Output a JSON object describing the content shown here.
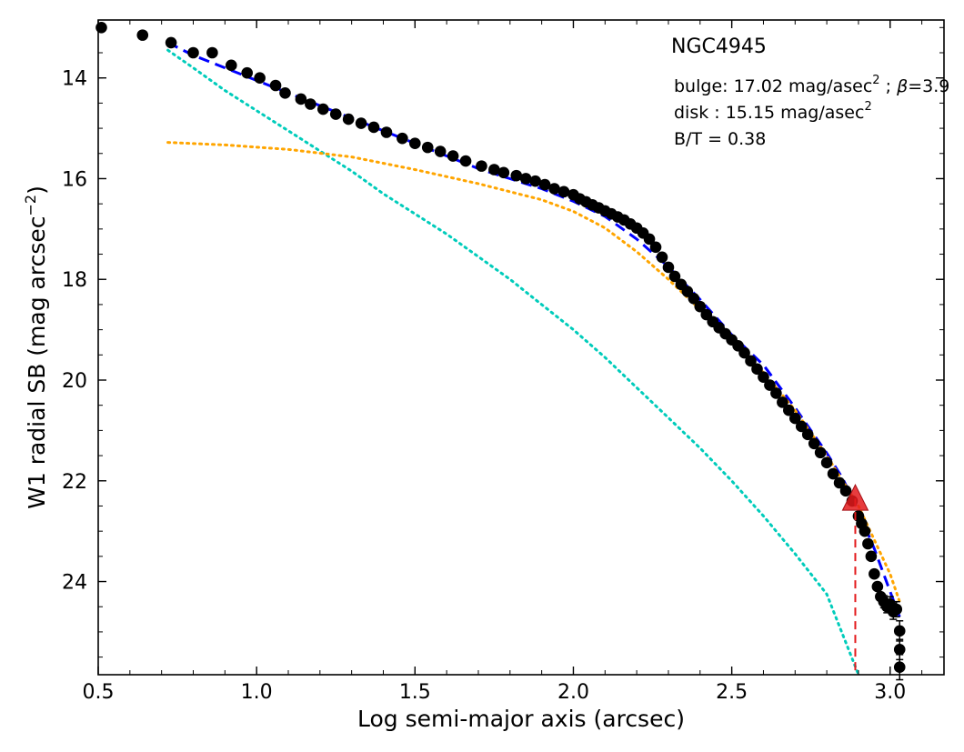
{
  "chart_data": {
    "type": "scatter",
    "title": "NGC4945",
    "xlabel": "Log semi-major axis (arcsec)",
    "ylabel": "W1 radial SB (mag arcsec",
    "ylabel_sup": "−2",
    "ylabel_close": ")",
    "xlim": [
      0.5,
      3.17
    ],
    "ylim": [
      25.85,
      12.85
    ],
    "y_inverted": true,
    "grid": false,
    "xticks": [
      0.5,
      1.0,
      1.5,
      2.0,
      2.5,
      3.0
    ],
    "xtick_labels": [
      "0.5",
      "1.0",
      "1.5",
      "2.0",
      "2.5",
      "3.0"
    ],
    "yticks": [
      14,
      16,
      18,
      20,
      22,
      24
    ],
    "ytick_labels": [
      "14",
      "16",
      "18",
      "20",
      "22",
      "24"
    ],
    "annotations": {
      "bulge_text": "bulge: 17.02 mag/asec",
      "bulge_sup": "2",
      "bulge_rest": " ; ",
      "beta_symbol": "β",
      "beta_value": "=3.9",
      "disk_text": "disk  : 15.15 mag/asec",
      "disk_sup": "2",
      "bt_text": "B/T = 0.38"
    },
    "colors": {
      "data": "#000000",
      "total_fit": "#0000ff",
      "bulge_fit": "#00ccbb",
      "disk_fit": "#ffa500",
      "marker": "#e31a1c",
      "marker_line": "#e31a1c"
    },
    "series": [
      {
        "name": "data",
        "kind": "points",
        "x": [
          0.51,
          0.64,
          0.73,
          0.8,
          0.86,
          0.92,
          0.97,
          1.01,
          1.06,
          1.09,
          1.14,
          1.17,
          1.21,
          1.25,
          1.29,
          1.33,
          1.37,
          1.41,
          1.46,
          1.5,
          1.54,
          1.58,
          1.62,
          1.66,
          1.71,
          1.75,
          1.78,
          1.82,
          1.85,
          1.88,
          1.91,
          1.94,
          1.97,
          2.0,
          2.02,
          2.04,
          2.06,
          2.08,
          2.1,
          2.12,
          2.14,
          2.16,
          2.18,
          2.2,
          2.22,
          2.24,
          2.26,
          2.28,
          2.3,
          2.32,
          2.34,
          2.36,
          2.38,
          2.4,
          2.42,
          2.44,
          2.46,
          2.48,
          2.5,
          2.52,
          2.54,
          2.56,
          2.58,
          2.6,
          2.62,
          2.64,
          2.66,
          2.68,
          2.7,
          2.72,
          2.74,
          2.76,
          2.78,
          2.8,
          2.82,
          2.84,
          2.86,
          2.88,
          2.9,
          2.91,
          2.92,
          2.93,
          2.94,
          2.95,
          2.96,
          2.97,
          2.98,
          2.99,
          3.0,
          3.01,
          3.02,
          3.03,
          3.03,
          3.03
        ],
        "y": [
          13.0,
          13.15,
          13.3,
          13.5,
          13.5,
          13.75,
          13.9,
          14.0,
          14.15,
          14.3,
          14.42,
          14.52,
          14.62,
          14.72,
          14.82,
          14.9,
          14.98,
          15.08,
          15.2,
          15.3,
          15.38,
          15.46,
          15.55,
          15.65,
          15.75,
          15.82,
          15.88,
          15.94,
          16.0,
          16.05,
          16.12,
          16.2,
          16.26,
          16.32,
          16.4,
          16.46,
          16.52,
          16.58,
          16.64,
          16.7,
          16.76,
          16.82,
          16.9,
          16.98,
          17.08,
          17.2,
          17.36,
          17.56,
          17.76,
          17.94,
          18.1,
          18.24,
          18.38,
          18.54,
          18.7,
          18.84,
          18.96,
          19.08,
          19.2,
          19.32,
          19.46,
          19.62,
          19.78,
          19.94,
          20.1,
          20.26,
          20.44,
          20.6,
          20.76,
          20.92,
          21.08,
          21.26,
          21.44,
          21.64,
          21.86,
          22.04,
          22.2,
          22.4,
          22.7,
          22.85,
          23.0,
          23.25,
          23.5,
          23.85,
          24.1,
          24.3,
          24.4,
          24.5,
          24.45,
          24.6,
          24.55,
          24.98,
          25.35,
          25.7
        ],
        "yerr": [
          0,
          0,
          0,
          0,
          0,
          0,
          0,
          0,
          0,
          0,
          0,
          0,
          0,
          0,
          0,
          0,
          0,
          0,
          0,
          0,
          0,
          0,
          0,
          0,
          0,
          0,
          0,
          0,
          0,
          0,
          0,
          0,
          0,
          0,
          0,
          0,
          0,
          0,
          0,
          0,
          0,
          0,
          0,
          0,
          0,
          0,
          0,
          0,
          0,
          0,
          0,
          0,
          0,
          0,
          0,
          0,
          0,
          0,
          0,
          0,
          0,
          0,
          0,
          0,
          0,
          0,
          0,
          0,
          0,
          0,
          0,
          0,
          0,
          0,
          0,
          0,
          0,
          0,
          0,
          0,
          0,
          0,
          0,
          0,
          0,
          0,
          0.12,
          0.12,
          0.15,
          0.15,
          0.15,
          0.2,
          0.2,
          0.25
        ]
      },
      {
        "name": "total",
        "kind": "dashed-line",
        "x": [
          0.72,
          0.8,
          0.9,
          1.0,
          1.1,
          1.2,
          1.3,
          1.4,
          1.5,
          1.6,
          1.7,
          1.8,
          1.9,
          2.0,
          2.1,
          2.2,
          2.3,
          2.4,
          2.5,
          2.6,
          2.7,
          2.8,
          2.85,
          2.9,
          2.95,
          3.0,
          3.03
        ],
        "y": [
          13.3,
          13.55,
          13.8,
          14.05,
          14.3,
          14.55,
          14.8,
          15.05,
          15.3,
          15.55,
          15.8,
          16.0,
          16.2,
          16.45,
          16.75,
          17.2,
          17.75,
          18.4,
          19.1,
          19.7,
          20.55,
          21.45,
          21.95,
          22.6,
          23.35,
          24.2,
          24.7
        ]
      },
      {
        "name": "bulge",
        "kind": "dotted-line",
        "x": [
          0.72,
          0.8,
          0.9,
          1.0,
          1.1,
          1.2,
          1.3,
          1.4,
          1.5,
          1.6,
          1.7,
          1.8,
          1.9,
          2.0,
          2.1,
          2.2,
          2.3,
          2.4,
          2.5,
          2.6,
          2.7,
          2.8,
          2.9
        ],
        "y": [
          13.45,
          13.8,
          14.25,
          14.65,
          15.05,
          15.45,
          15.85,
          16.3,
          16.7,
          17.1,
          17.55,
          18.0,
          18.5,
          19.0,
          19.55,
          20.15,
          20.75,
          21.35,
          22.0,
          22.7,
          23.45,
          24.25,
          25.85
        ]
      },
      {
        "name": "disk",
        "kind": "dotted-line",
        "x": [
          0.72,
          0.9,
          1.1,
          1.3,
          1.5,
          1.7,
          1.9,
          2.0,
          2.1,
          2.2,
          2.3,
          2.4,
          2.5,
          2.6,
          2.7,
          2.8,
          2.9,
          3.0,
          3.03
        ],
        "y": [
          15.28,
          15.33,
          15.42,
          15.57,
          15.82,
          16.1,
          16.42,
          16.65,
          16.98,
          17.45,
          18.0,
          18.6,
          19.25,
          19.85,
          20.6,
          21.5,
          22.5,
          23.85,
          24.4
        ]
      }
    ],
    "marker": {
      "x": 2.89,
      "y": 22.35,
      "line_from_y": 22.35,
      "line_to_y": 25.85
    }
  }
}
